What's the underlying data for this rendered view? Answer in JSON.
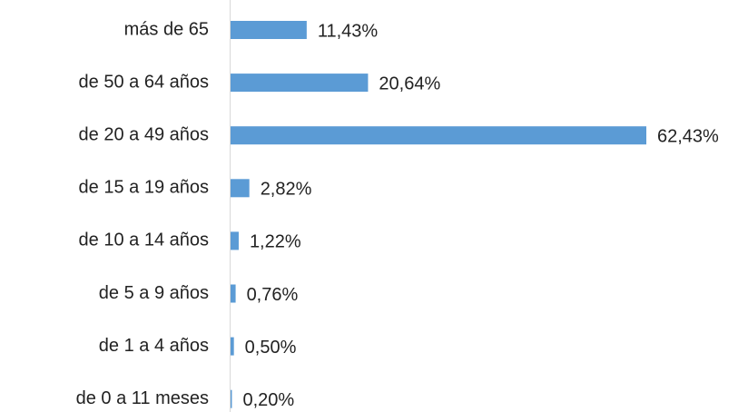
{
  "chart_data": {
    "type": "bar",
    "orientation": "horizontal",
    "categories": [
      "más de 65",
      "de 50 a 64 años",
      "de 20 a 49 años",
      "de 15 a 19 años",
      "de 10 a 14 años",
      "de 5 a 9 años",
      "de 1 a 4 años",
      "de 0 a 11 meses"
    ],
    "values": [
      11.43,
      20.64,
      62.43,
      2.82,
      1.22,
      0.76,
      0.5,
      0.2
    ],
    "value_labels": [
      "11,43%",
      "20,64%",
      "62,43%",
      "2,82%",
      "1,22%",
      "0,76%",
      "0,50%",
      "0,20%"
    ],
    "color": "#5b9bd5"
  }
}
